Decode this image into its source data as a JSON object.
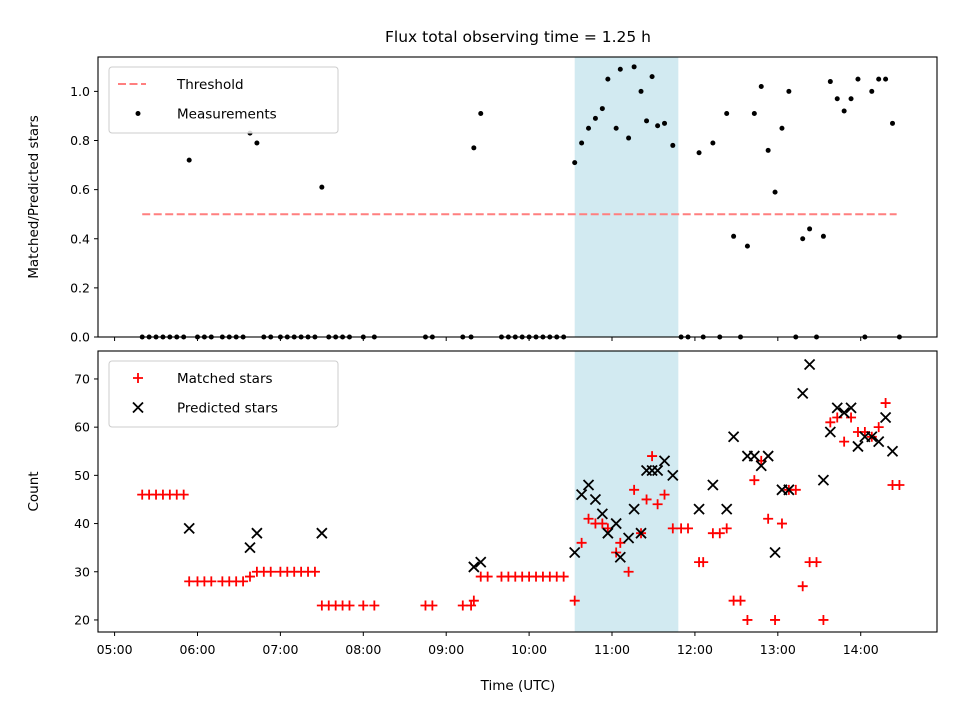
{
  "figure": {
    "title": "Flux total observing time = 1.25 h",
    "xlabel": "Time (UTC)",
    "x_ticks": [
      "05:00",
      "06:00",
      "07:00",
      "08:00",
      "09:00",
      "10:00",
      "11:00",
      "12:00",
      "13:00",
      "14:00"
    ],
    "shaded_interval": {
      "start": "10:33",
      "end": "11:48",
      "color": "#add8e6"
    }
  },
  "chart_data": [
    {
      "type": "scatter",
      "ylabel": "Matched/Predicted stars",
      "ylim": [
        0,
        1.14
      ],
      "y_ticks": [
        "0.0",
        "0.2",
        "0.4",
        "0.6",
        "0.8",
        "1.0"
      ],
      "legend": {
        "placement": "top-left",
        "entries": [
          {
            "label": "Threshold",
            "style": "dashed-line",
            "color": "#ff7f7f"
          },
          {
            "label": "Measurements",
            "style": "dot",
            "color": "#000000"
          }
        ]
      },
      "threshold": {
        "value": 0.5,
        "x_start": "05:20",
        "x_end": "14:26"
      },
      "measurements": [
        [
          "05:20",
          0
        ],
        [
          "05:25",
          0
        ],
        [
          "05:30",
          0
        ],
        [
          "05:35",
          0
        ],
        [
          "05:40",
          0
        ],
        [
          "05:45",
          0
        ],
        [
          "05:50",
          0
        ],
        [
          "05:54",
          0.72
        ],
        [
          "06:00",
          0
        ],
        [
          "06:05",
          0
        ],
        [
          "06:10",
          0
        ],
        [
          "06:18",
          0
        ],
        [
          "06:23",
          0
        ],
        [
          "06:28",
          0
        ],
        [
          "06:33",
          0
        ],
        [
          "06:38",
          0.83
        ],
        [
          "06:43",
          0.79
        ],
        [
          "06:48",
          0
        ],
        [
          "06:53",
          0
        ],
        [
          "07:00",
          0
        ],
        [
          "07:05",
          0
        ],
        [
          "07:10",
          0
        ],
        [
          "07:15",
          0
        ],
        [
          "07:20",
          0
        ],
        [
          "07:25",
          0
        ],
        [
          "07:30",
          0.61
        ],
        [
          "07:35",
          0
        ],
        [
          "07:40",
          0
        ],
        [
          "07:45",
          0
        ],
        [
          "07:50",
          0
        ],
        [
          "08:00",
          0
        ],
        [
          "08:08",
          0
        ],
        [
          "08:45",
          0
        ],
        [
          "08:50",
          0
        ],
        [
          "09:12",
          0
        ],
        [
          "09:18",
          0
        ],
        [
          "09:20",
          0.77
        ],
        [
          "09:25",
          0.91
        ],
        [
          "09:40",
          0
        ],
        [
          "09:45",
          0
        ],
        [
          "09:50",
          0
        ],
        [
          "09:55",
          0
        ],
        [
          "10:00",
          0
        ],
        [
          "10:05",
          0
        ],
        [
          "10:10",
          0
        ],
        [
          "10:15",
          0
        ],
        [
          "10:20",
          0
        ],
        [
          "10:25",
          0
        ],
        [
          "10:33",
          0.71
        ],
        [
          "10:38",
          0.79
        ],
        [
          "10:43",
          0.85
        ],
        [
          "10:48",
          0.89
        ],
        [
          "10:53",
          0.93
        ],
        [
          "10:57",
          1.05
        ],
        [
          "11:03",
          0.85
        ],
        [
          "11:06",
          1.09
        ],
        [
          "11:12",
          0.81
        ],
        [
          "11:16",
          1.1
        ],
        [
          "11:21",
          1.0
        ],
        [
          "11:25",
          0.88
        ],
        [
          "11:29",
          1.06
        ],
        [
          "11:33",
          0.86
        ],
        [
          "11:38",
          0.87
        ],
        [
          "11:44",
          0.78
        ],
        [
          "11:50",
          0
        ],
        [
          "11:55",
          0
        ],
        [
          "12:03",
          0.75
        ],
        [
          "12:06",
          0
        ],
        [
          "12:13",
          0.79
        ],
        [
          "12:18",
          0
        ],
        [
          "12:23",
          0.91
        ],
        [
          "12:28",
          0.41
        ],
        [
          "12:33",
          0
        ],
        [
          "12:38",
          0.37
        ],
        [
          "12:43",
          0.91
        ],
        [
          "12:48",
          1.02
        ],
        [
          "12:53",
          0.76
        ],
        [
          "12:58",
          0.59
        ],
        [
          "13:03",
          0.85
        ],
        [
          "13:08",
          1.0
        ],
        [
          "13:13",
          0
        ],
        [
          "13:18",
          0.4
        ],
        [
          "13:23",
          0.44
        ],
        [
          "13:28",
          0
        ],
        [
          "13:33",
          0.41
        ],
        [
          "13:38",
          1.04
        ],
        [
          "13:43",
          0.97
        ],
        [
          "13:48",
          0.92
        ],
        [
          "13:53",
          0.97
        ],
        [
          "13:58",
          1.05
        ],
        [
          "14:03",
          0
        ],
        [
          "14:08",
          1.0
        ],
        [
          "14:13",
          1.05
        ],
        [
          "14:18",
          1.05
        ],
        [
          "14:23",
          0.87
        ],
        [
          "14:28",
          0
        ]
      ]
    },
    {
      "type": "scatter",
      "ylabel": "Count",
      "ylim": [
        17.5,
        75.8
      ],
      "y_ticks": [
        "20",
        "30",
        "40",
        "50",
        "60",
        "70"
      ],
      "legend": {
        "placement": "top-left",
        "entries": [
          {
            "label": "Matched stars",
            "style": "plus",
            "color": "#ff0000"
          },
          {
            "label": "Predicted stars",
            "style": "x",
            "color": "#000000"
          }
        ]
      },
      "series": [
        {
          "name": "Matched stars",
          "marker": "plus",
          "color": "#ff0000",
          "points": [
            [
              "05:20",
              46
            ],
            [
              "05:25",
              46
            ],
            [
              "05:30",
              46
            ],
            [
              "05:35",
              46
            ],
            [
              "05:40",
              46
            ],
            [
              "05:45",
              46
            ],
            [
              "05:50",
              46
            ],
            [
              "05:54",
              28
            ],
            [
              "06:00",
              28
            ],
            [
              "06:05",
              28
            ],
            [
              "06:10",
              28
            ],
            [
              "06:18",
              28
            ],
            [
              "06:23",
              28
            ],
            [
              "06:28",
              28
            ],
            [
              "06:33",
              28
            ],
            [
              "06:38",
              29
            ],
            [
              "06:43",
              30
            ],
            [
              "06:48",
              30
            ],
            [
              "06:53",
              30
            ],
            [
              "07:00",
              30
            ],
            [
              "07:05",
              30
            ],
            [
              "07:10",
              30
            ],
            [
              "07:15",
              30
            ],
            [
              "07:20",
              30
            ],
            [
              "07:25",
              30
            ],
            [
              "07:30",
              23
            ],
            [
              "07:35",
              23
            ],
            [
              "07:40",
              23
            ],
            [
              "07:45",
              23
            ],
            [
              "07:50",
              23
            ],
            [
              "08:00",
              23
            ],
            [
              "08:08",
              23
            ],
            [
              "08:45",
              23
            ],
            [
              "08:50",
              23
            ],
            [
              "09:12",
              23
            ],
            [
              "09:18",
              23
            ],
            [
              "09:20",
              24
            ],
            [
              "09:25",
              29
            ],
            [
              "09:30",
              29
            ],
            [
              "09:40",
              29
            ],
            [
              "09:45",
              29
            ],
            [
              "09:50",
              29
            ],
            [
              "09:55",
              29
            ],
            [
              "10:00",
              29
            ],
            [
              "10:05",
              29
            ],
            [
              "10:10",
              29
            ],
            [
              "10:15",
              29
            ],
            [
              "10:20",
              29
            ],
            [
              "10:25",
              29
            ],
            [
              "10:33",
              24
            ],
            [
              "10:38",
              36
            ],
            [
              "10:43",
              41
            ],
            [
              "10:48",
              40
            ],
            [
              "10:53",
              40
            ],
            [
              "10:57",
              39
            ],
            [
              "11:03",
              34
            ],
            [
              "11:06",
              36
            ],
            [
              "11:12",
              30
            ],
            [
              "11:16",
              47
            ],
            [
              "11:21",
              38
            ],
            [
              "11:25",
              45
            ],
            [
              "11:29",
              54
            ],
            [
              "11:33",
              44
            ],
            [
              "11:38",
              46
            ],
            [
              "11:44",
              39
            ],
            [
              "11:50",
              39
            ],
            [
              "11:55",
              39
            ],
            [
              "12:03",
              32
            ],
            [
              "12:06",
              32
            ],
            [
              "12:13",
              38
            ],
            [
              "12:18",
              38
            ],
            [
              "12:23",
              39
            ],
            [
              "12:28",
              24
            ],
            [
              "12:33",
              24
            ],
            [
              "12:38",
              20
            ],
            [
              "12:43",
              49
            ],
            [
              "12:48",
              53
            ],
            [
              "12:53",
              41
            ],
            [
              "12:58",
              20
            ],
            [
              "13:03",
              40
            ],
            [
              "13:08",
              47
            ],
            [
              "13:13",
              47
            ],
            [
              "13:18",
              27
            ],
            [
              "13:23",
              32
            ],
            [
              "13:28",
              32
            ],
            [
              "13:33",
              20
            ],
            [
              "13:38",
              61
            ],
            [
              "13:43",
              62
            ],
            [
              "13:48",
              57
            ],
            [
              "13:53",
              62
            ],
            [
              "13:58",
              59
            ],
            [
              "14:03",
              59
            ],
            [
              "14:08",
              58
            ],
            [
              "14:13",
              60
            ],
            [
              "14:18",
              65
            ],
            [
              "14:23",
              48
            ],
            [
              "14:28",
              48
            ]
          ]
        },
        {
          "name": "Predicted stars",
          "marker": "x",
          "color": "#000000",
          "points": [
            [
              "05:54",
              39
            ],
            [
              "06:38",
              35
            ],
            [
              "06:43",
              38
            ],
            [
              "07:30",
              38
            ],
            [
              "09:20",
              31
            ],
            [
              "09:25",
              32
            ],
            [
              "10:33",
              34
            ],
            [
              "10:38",
              46
            ],
            [
              "10:43",
              48
            ],
            [
              "10:48",
              45
            ],
            [
              "10:53",
              42
            ],
            [
              "10:57",
              38
            ],
            [
              "11:03",
              40
            ],
            [
              "11:06",
              33
            ],
            [
              "11:12",
              37
            ],
            [
              "11:16",
              43
            ],
            [
              "11:21",
              38
            ],
            [
              "11:25",
              51
            ],
            [
              "11:29",
              51
            ],
            [
              "11:33",
              51
            ],
            [
              "11:38",
              53
            ],
            [
              "11:44",
              50
            ],
            [
              "12:03",
              43
            ],
            [
              "12:13",
              48
            ],
            [
              "12:23",
              43
            ],
            [
              "12:28",
              58
            ],
            [
              "12:38",
              54
            ],
            [
              "12:43",
              54
            ],
            [
              "12:48",
              52
            ],
            [
              "12:53",
              54
            ],
            [
              "12:58",
              34
            ],
            [
              "13:03",
              47
            ],
            [
              "13:08",
              47
            ],
            [
              "13:18",
              67
            ],
            [
              "13:23",
              73
            ],
            [
              "13:33",
              49
            ],
            [
              "13:38",
              59
            ],
            [
              "13:43",
              64
            ],
            [
              "13:48",
              63
            ],
            [
              "13:53",
              64
            ],
            [
              "13:58",
              56
            ],
            [
              "14:03",
              58
            ],
            [
              "14:08",
              58
            ],
            [
              "14:13",
              57
            ],
            [
              "14:18",
              62
            ],
            [
              "14:23",
              55
            ]
          ]
        }
      ]
    }
  ]
}
